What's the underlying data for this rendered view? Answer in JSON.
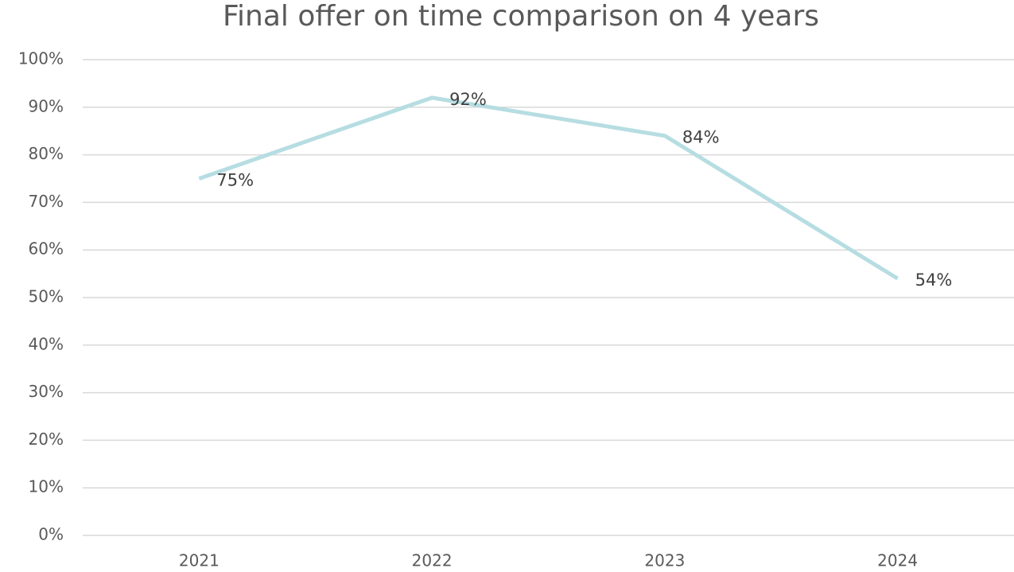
{
  "chart_data": {
    "type": "line",
    "title": "Final offer on time comparison on 4 years",
    "categories": [
      "2021",
      "2022",
      "2023",
      "2024"
    ],
    "values": [
      75,
      92,
      84,
      54
    ],
    "value_labels": [
      "75%",
      "92%",
      "84%",
      "54%"
    ],
    "color": "#b6dde2",
    "ylim": [
      0,
      100
    ],
    "yticks": [
      {
        "value": 0,
        "label": "0%"
      },
      {
        "value": 10,
        "label": "10%"
      },
      {
        "value": 20,
        "label": "20%"
      },
      {
        "value": 30,
        "label": "30%"
      },
      {
        "value": 40,
        "label": "40%"
      },
      {
        "value": 50,
        "label": "50%"
      },
      {
        "value": 60,
        "label": "60%"
      },
      {
        "value": 70,
        "label": "70%"
      },
      {
        "value": 80,
        "label": "80%"
      },
      {
        "value": 90,
        "label": "90%"
      },
      {
        "value": 100,
        "label": "100%"
      }
    ],
    "grid": true
  }
}
